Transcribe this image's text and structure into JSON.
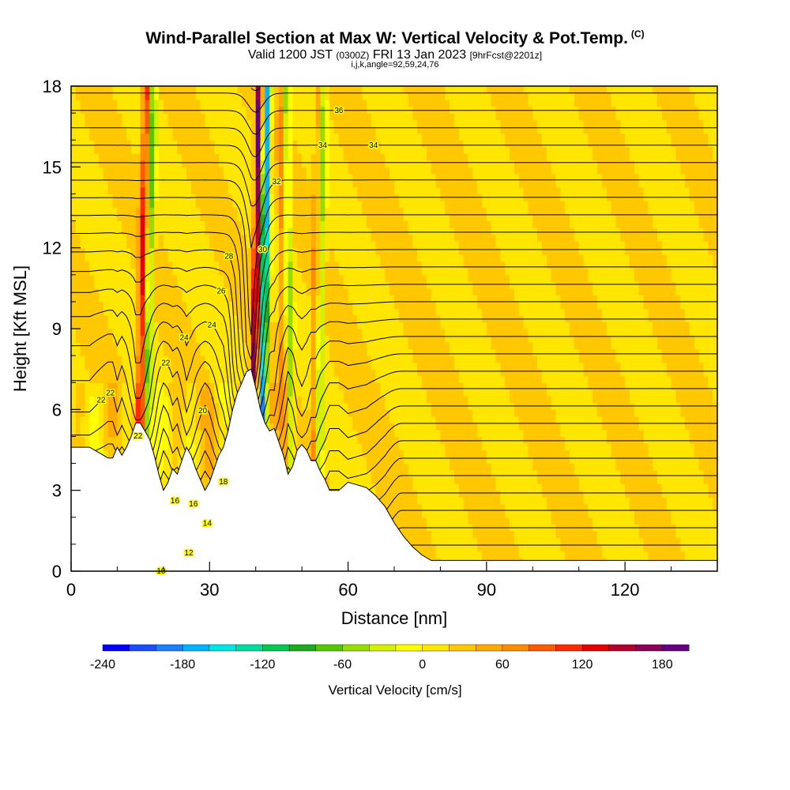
{
  "header": {
    "title": "Wind-Parallel Section at Max W: Vertical Velocity & Pot.Temp.",
    "title_unit": "(C)",
    "subtitle_main_1": "Valid 1200 JST",
    "subtitle_small_1": "(0300Z)",
    "subtitle_main_2": "FRI 13 Jan 2023",
    "subtitle_small_2": "[9hrFcst@2201z]",
    "params": "i,j,k,angle=92,59,24,76"
  },
  "chart_data": {
    "type": "heatmap",
    "title": "Wind-Parallel Section at Max W: Vertical Velocity & Pot.Temp.",
    "xlabel": "Distance [nm]",
    "ylabel": "Height [Kft MSL]",
    "xlim": [
      0,
      140
    ],
    "ylim": [
      0,
      18
    ],
    "xticks": [
      0,
      30,
      60,
      90,
      120
    ],
    "yticks": [
      0,
      3,
      6,
      9,
      12,
      15,
      18
    ],
    "colorbar": {
      "label": "Vertical Velocity [cm/s]",
      "ticks": [
        -240,
        -180,
        -120,
        -60,
        0,
        60,
        120,
        180
      ],
      "range": [
        -240,
        200
      ],
      "colors": [
        "#0000ff",
        "#1a4dff",
        "#1a7fff",
        "#00b4ff",
        "#00e6e6",
        "#00dca0",
        "#00c850",
        "#1eaa1e",
        "#55c800",
        "#96dc00",
        "#d2f000",
        "#ffff00",
        "#ffe600",
        "#ffc800",
        "#ffaa00",
        "#ff8c00",
        "#ff5a00",
        "#ff2800",
        "#e60000",
        "#b4002d",
        "#8c005a",
        "#640082"
      ]
    },
    "terrain_kft": [
      [
        0,
        4.6
      ],
      [
        2,
        4.6
      ],
      [
        4,
        4.6
      ],
      [
        6,
        4.4
      ],
      [
        8,
        4.2
      ],
      [
        9,
        4.2
      ],
      [
        10,
        4.6
      ],
      [
        11,
        4.3
      ],
      [
        12,
        4.6
      ],
      [
        13,
        5.0
      ],
      [
        14,
        5.5
      ],
      [
        15,
        5.5
      ],
      [
        16,
        5.2
      ],
      [
        17,
        4.9
      ],
      [
        18,
        4.3
      ],
      [
        19,
        3.6
      ],
      [
        20,
        3.0
      ],
      [
        21,
        3.3
      ],
      [
        22,
        3.8
      ],
      [
        23,
        3.6
      ],
      [
        24,
        4.1
      ],
      [
        25,
        4.6
      ],
      [
        26,
        4.3
      ],
      [
        27,
        3.8
      ],
      [
        28,
        3.4
      ],
      [
        29,
        3.0
      ],
      [
        30,
        3.3
      ],
      [
        31,
        3.8
      ],
      [
        32,
        4.3
      ],
      [
        33,
        4.6
      ],
      [
        34,
        5.2
      ],
      [
        35,
        6.0
      ],
      [
        36,
        6.6
      ],
      [
        37,
        7.0
      ],
      [
        38,
        7.4
      ],
      [
        39,
        7.5
      ],
      [
        40,
        6.8
      ],
      [
        41,
        6.0
      ],
      [
        42,
        5.5
      ],
      [
        43,
        5.2
      ],
      [
        44,
        5.3
      ],
      [
        45,
        4.8
      ],
      [
        46,
        4.3
      ],
      [
        47,
        3.6
      ],
      [
        48,
        3.9
      ],
      [
        49,
        4.5
      ],
      [
        50,
        4.7
      ],
      [
        51,
        4.5
      ],
      [
        52,
        4.1
      ],
      [
        53,
        4.1
      ],
      [
        54,
        3.7
      ],
      [
        55,
        3.4
      ],
      [
        56,
        3.0
      ],
      [
        58,
        3.0
      ],
      [
        60,
        3.3
      ],
      [
        62,
        3.2
      ],
      [
        64,
        3.1
      ],
      [
        66,
        2.8
      ],
      [
        68,
        2.4
      ],
      [
        70,
        1.8
      ],
      [
        72,
        1.3
      ],
      [
        74,
        0.9
      ],
      [
        76,
        0.6
      ],
      [
        78,
        0.4
      ],
      [
        80,
        0.4
      ],
      [
        100,
        0.4
      ],
      [
        120,
        0.4
      ],
      [
        140,
        0.4
      ]
    ],
    "theta_levels": [
      10,
      11,
      12,
      13,
      14,
      15,
      16,
      17,
      18,
      19,
      20,
      21,
      22,
      23,
      24,
      25,
      26,
      27,
      28,
      29,
      30,
      31,
      32,
      33,
      34,
      35,
      36,
      37,
      38,
      39
    ],
    "contour_labels": [
      {
        "x": 19.5,
        "y": 3.0,
        "text": "10"
      },
      {
        "x": 25.5,
        "y": 4.8,
        "text": "12"
      },
      {
        "x": 29.5,
        "y": 3.7,
        "text": "14"
      },
      {
        "x": 26.5,
        "y": 6.4,
        "text": "16"
      },
      {
        "x": 22.5,
        "y": 7.2,
        "text": "16"
      },
      {
        "x": 33,
        "y": 8.4,
        "text": "18"
      },
      {
        "x": 28.5,
        "y": 9.8,
        "text": "20"
      },
      {
        "x": 8.5,
        "y": 11.4,
        "text": "22"
      },
      {
        "x": 14.5,
        "y": 11.9,
        "text": "22"
      },
      {
        "x": 20.5,
        "y": 12.4,
        "text": "22"
      },
      {
        "x": 24.5,
        "y": 14.1,
        "text": "24"
      },
      {
        "x": 30.5,
        "y": 14.3,
        "text": "24"
      },
      {
        "x": 32.5,
        "y": 16.4,
        "text": "26"
      },
      {
        "x": 34.2,
        "y": 17.9,
        "text": "28"
      },
      {
        "x": 41.5,
        "y": 18.6,
        "text": "30"
      },
      {
        "x": 44.5,
        "y": 19.8,
        "text": "32"
      },
      {
        "x": 54.5,
        "y": 20.2,
        "text": "34"
      },
      {
        "x": 58,
        "y": 21.4,
        "text": "36"
      },
      {
        "x": 6.5,
        "y": 9.1,
        "text": "22"
      },
      {
        "x": 65.5,
        "y": 19.1,
        "text": "34"
      }
    ]
  }
}
